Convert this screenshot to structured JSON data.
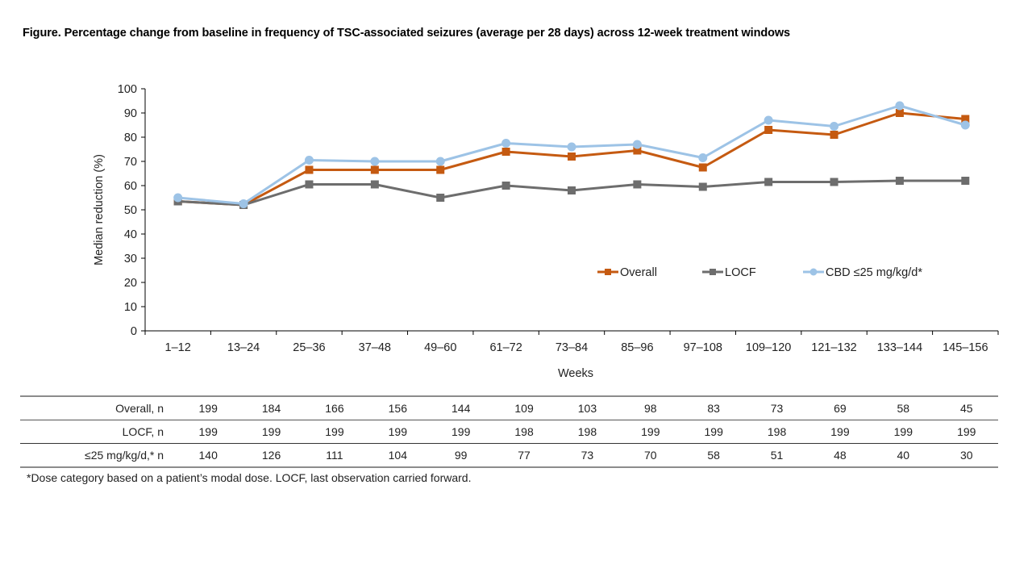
{
  "title": "Figure. Percentage change from baseline in frequency of TSC-associated seizures (average per 28 days) across 12-week treatment windows",
  "chart_data": {
    "type": "line",
    "title": "Figure. Percentage change from baseline in frequency of TSC-associated seizures (average per 28 days) across 12-week treatment windows",
    "xlabel": "Weeks",
    "ylabel": "Median reduction (%)",
    "ylim": [
      0,
      100
    ],
    "yticks": [
      0,
      10,
      20,
      30,
      40,
      50,
      60,
      70,
      80,
      90,
      100
    ],
    "grid": false,
    "legend_position": "center-right",
    "categories": [
      "1–12",
      "13–24",
      "25–36",
      "37–48",
      "49–60",
      "61–72",
      "73–84",
      "85–96",
      "97–108",
      "109–120",
      "121–132",
      "133–144",
      "145–156"
    ],
    "series": [
      {
        "name": "Overall",
        "color": "#c55a11",
        "marker": "square",
        "values": [
          53.5,
          52,
          66.5,
          66.5,
          66.5,
          74,
          72,
          74.5,
          67.5,
          83,
          81,
          90,
          87.5
        ]
      },
      {
        "name": "LOCF",
        "color": "#6d6d6d",
        "marker": "square",
        "values": [
          53.5,
          52,
          60.5,
          60.5,
          55,
          60,
          58,
          60.5,
          59.5,
          61.5,
          61.5,
          62,
          62
        ]
      },
      {
        "name": "CBD ≤25 mg/kg/d*",
        "color": "#9dc3e6",
        "marker": "circle",
        "values": [
          55,
          52.5,
          70.5,
          70,
          70,
          77.5,
          76,
          77,
          71.5,
          87,
          84.5,
          93,
          85
        ]
      }
    ]
  },
  "n_table": {
    "rows": [
      {
        "label": "Overall,  n",
        "values": [
          "199",
          "184",
          "166",
          "156",
          "144",
          "109",
          "103",
          "98",
          "83",
          "73",
          "69",
          "58",
          "45"
        ]
      },
      {
        "label": "LOCF, n",
        "values": [
          "199",
          "199",
          "199",
          "199",
          "199",
          "198",
          "198",
          "199",
          "199",
          "198",
          "199",
          "199",
          "199"
        ]
      },
      {
        "label": "≤25 mg/kg/d,* n",
        "values": [
          "140",
          "126",
          "111",
          "104",
          "99",
          "77",
          "73",
          "70",
          "58",
          "51",
          "48",
          "40",
          "30"
        ]
      }
    ]
  },
  "footnote": "*Dose category based on a patient’s modal dose. LOCF, last observation carried forward."
}
